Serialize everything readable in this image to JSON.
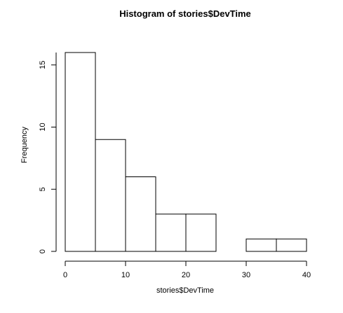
{
  "chart_data": {
    "type": "bar",
    "title": "Histogram of stories$DevTime",
    "xlabel": "stories$DevTime",
    "ylabel": "Frequency",
    "bins": [
      {
        "start": 0,
        "end": 5,
        "count": 16
      },
      {
        "start": 5,
        "end": 10,
        "count": 9
      },
      {
        "start": 10,
        "end": 15,
        "count": 6
      },
      {
        "start": 15,
        "end": 20,
        "count": 3
      },
      {
        "start": 20,
        "end": 25,
        "count": 3
      },
      {
        "start": 25,
        "end": 30,
        "count": 0
      },
      {
        "start": 30,
        "end": 35,
        "count": 1
      },
      {
        "start": 35,
        "end": 40,
        "count": 1
      }
    ],
    "xlim": [
      0,
      40
    ],
    "ylim": [
      0,
      16
    ],
    "xticks": [
      "0",
      "10",
      "20",
      "30",
      "40"
    ],
    "yticks": [
      "0",
      "5",
      "10",
      "15"
    ],
    "grid": false,
    "legend": "none"
  }
}
